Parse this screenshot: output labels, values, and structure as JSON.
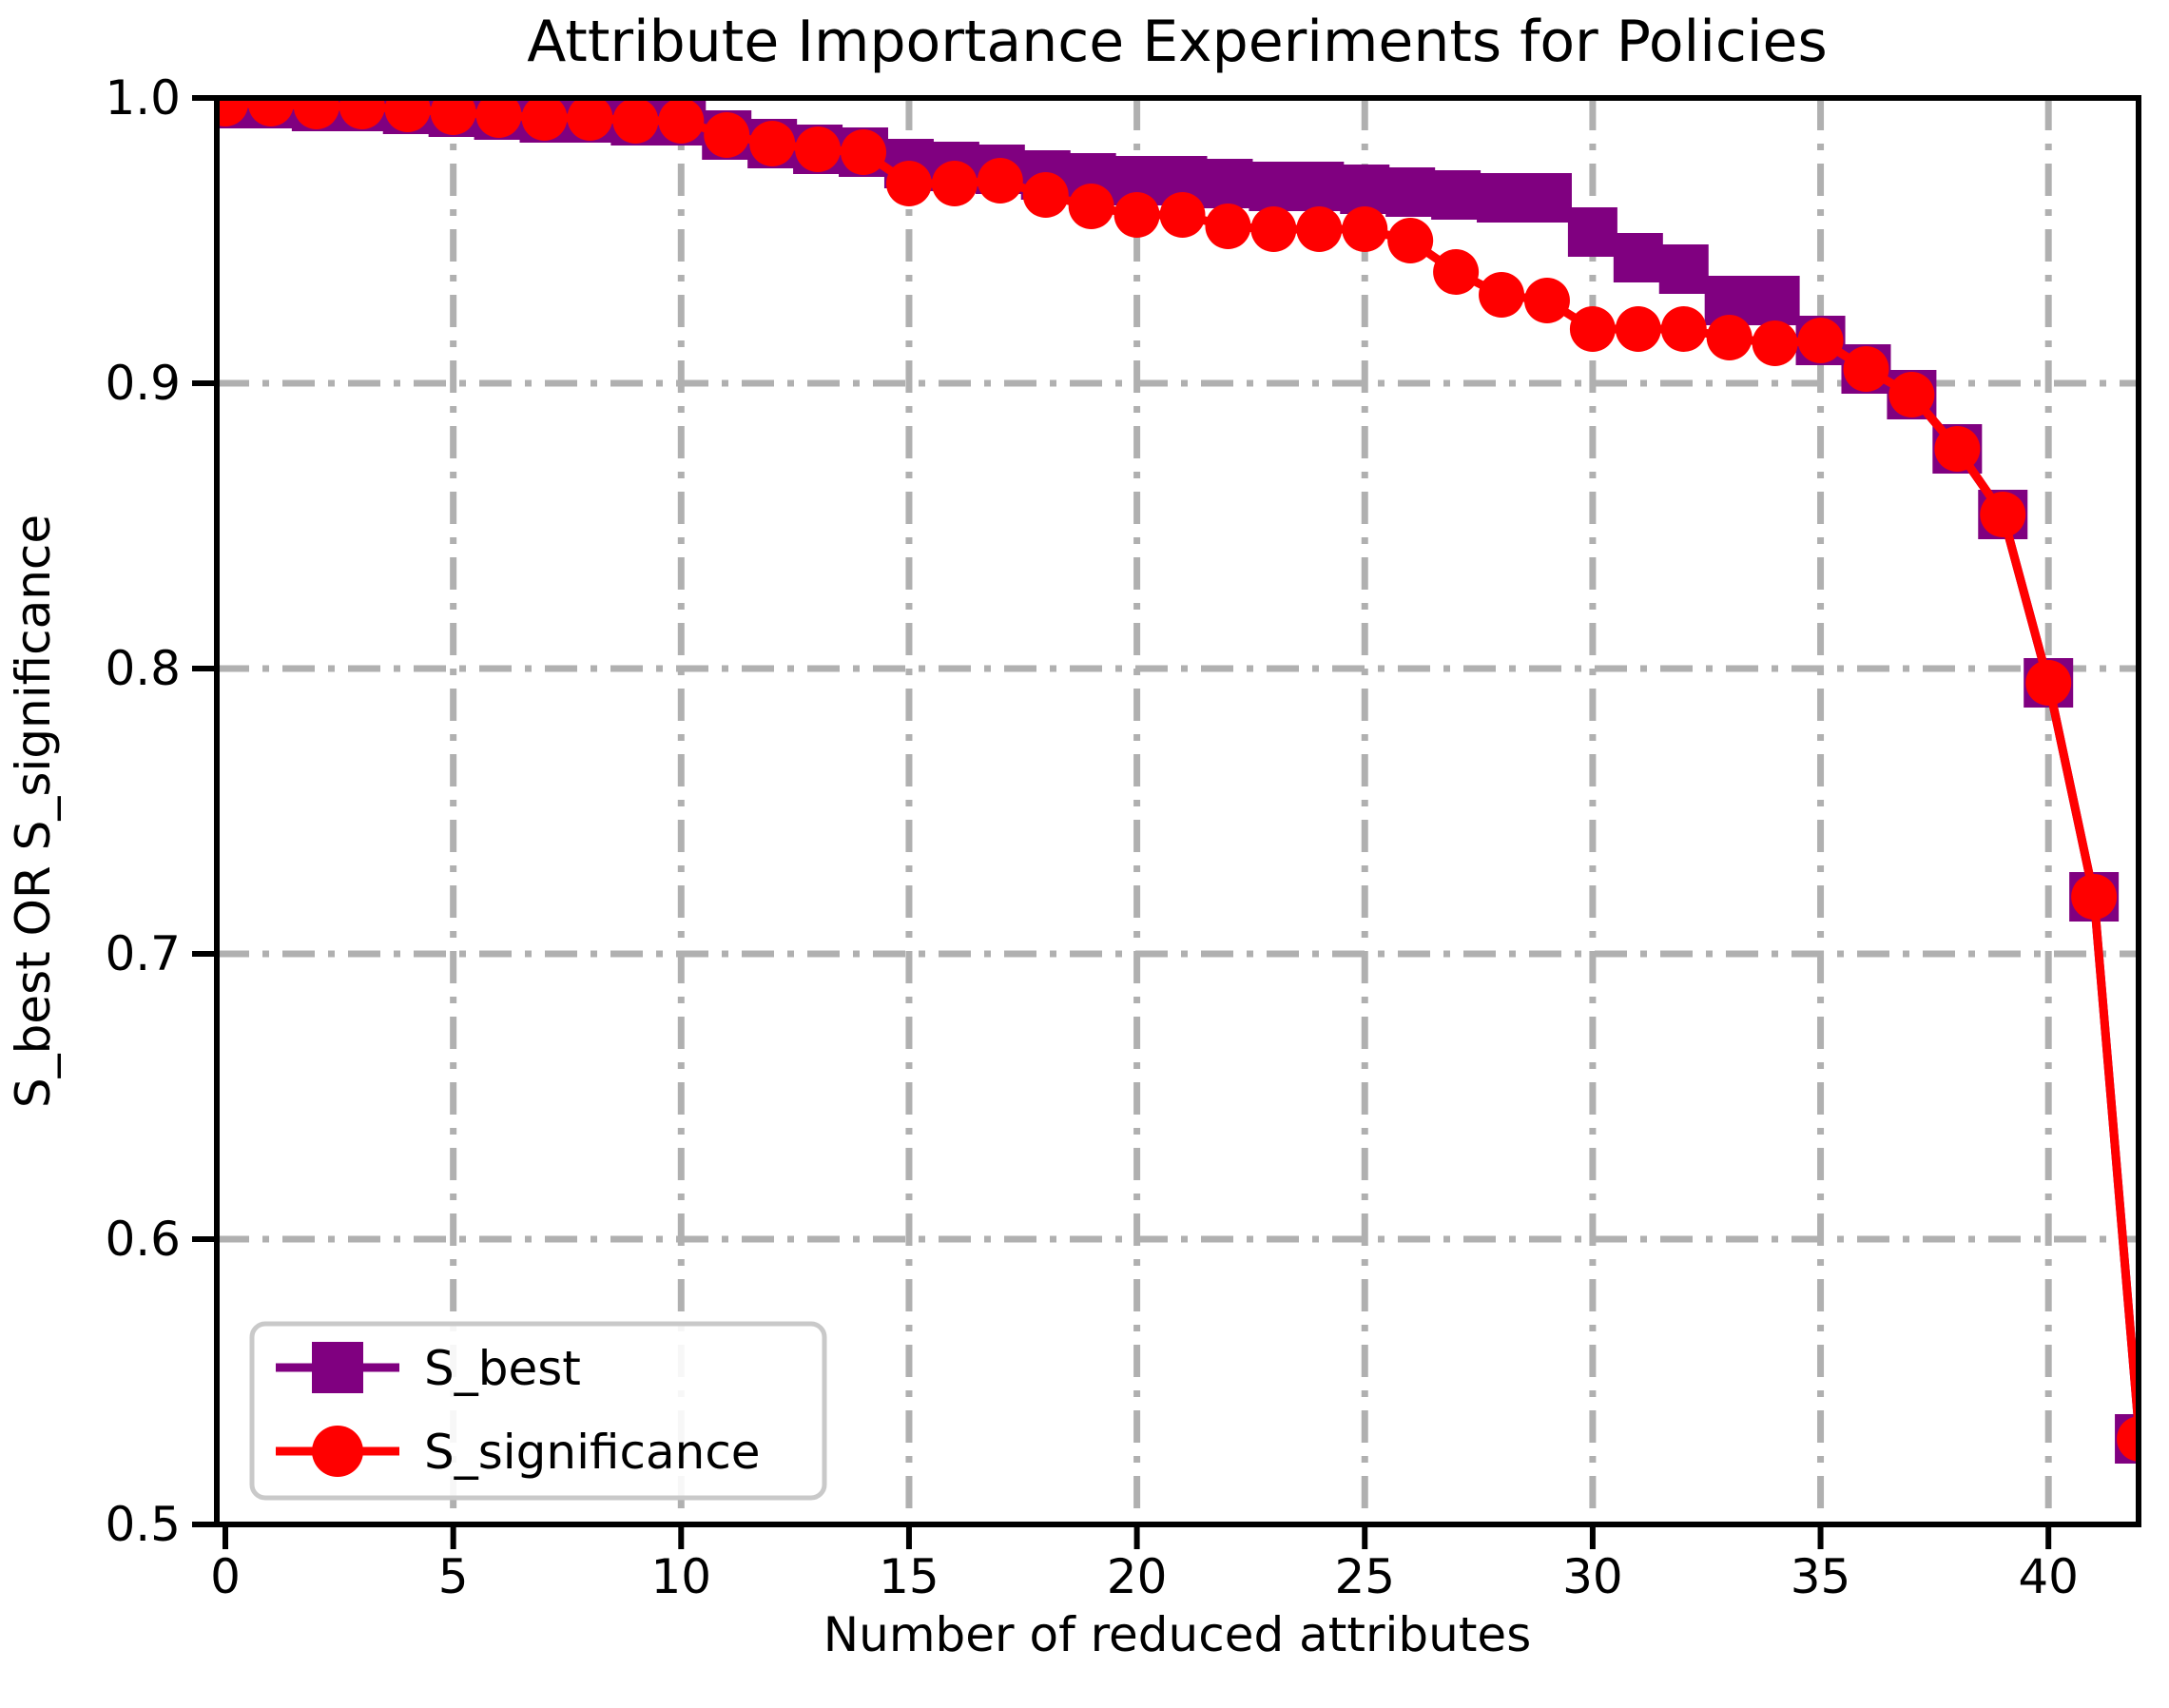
{
  "chart_data": {
    "type": "line",
    "title": "Attribute Importance Experiments for Policies",
    "xlabel": "Number of reduced attributes",
    "ylabel": "S_best OR S_significance",
    "x_tick_labels": [
      "0",
      "5",
      "10",
      "15",
      "20",
      "25",
      "30",
      "35",
      "40"
    ],
    "x_tick_values": [
      0,
      5,
      10,
      15,
      20,
      25,
      30,
      35,
      40
    ],
    "y_tick_labels": [
      "1.0",
      "0.9",
      "0.8",
      "0.7",
      "0.6",
      "0.5"
    ],
    "y_tick_values": [
      1.0,
      0.9,
      0.8,
      0.7,
      0.6,
      0.5
    ],
    "xlim": [
      -0.2,
      42.0
    ],
    "ylim": [
      0.5,
      1.0
    ],
    "grid": "dash-dot gridlines at x=5..40 step 5 and y=0.6..0.9 step 0.1",
    "legend_position": "lower-left",
    "x": [
      0,
      1,
      2,
      3,
      4,
      5,
      6,
      7,
      8,
      9,
      10,
      11,
      12,
      13,
      14,
      15,
      16,
      17,
      18,
      19,
      20,
      21,
      22,
      23,
      24,
      25,
      26,
      27,
      28,
      29,
      30,
      31,
      32,
      33,
      34,
      35,
      36,
      37,
      38,
      39,
      40,
      41,
      42
    ],
    "series": [
      {
        "name": "S_best",
        "color": "#800080",
        "marker": "square",
        "values": [
          0.998,
          0.998,
          0.997,
          0.997,
          0.996,
          0.995,
          0.994,
          0.993,
          0.993,
          0.992,
          0.992,
          0.987,
          0.984,
          0.982,
          0.981,
          0.977,
          0.976,
          0.975,
          0.973,
          0.972,
          0.971,
          0.971,
          0.97,
          0.969,
          0.969,
          0.968,
          0.967,
          0.966,
          0.965,
          0.965,
          0.953,
          0.944,
          0.94,
          0.929,
          0.929,
          0.915,
          0.905,
          0.896,
          0.877,
          0.854,
          0.795,
          0.72,
          0.53
        ]
      },
      {
        "name": "S_significance",
        "color": "#ff0000",
        "marker": "circle",
        "values": [
          0.998,
          0.998,
          0.997,
          0.997,
          0.996,
          0.995,
          0.994,
          0.993,
          0.993,
          0.992,
          0.992,
          0.987,
          0.984,
          0.982,
          0.981,
          0.97,
          0.97,
          0.971,
          0.966,
          0.962,
          0.959,
          0.959,
          0.955,
          0.954,
          0.954,
          0.954,
          0.95,
          0.939,
          0.931,
          0.929,
          0.919,
          0.919,
          0.919,
          0.916,
          0.914,
          0.915,
          0.905,
          0.896,
          0.877,
          0.854,
          0.795,
          0.72,
          0.53
        ]
      }
    ]
  },
  "colors": {
    "background": "#ffffff",
    "spine": "#000000",
    "grid": "#b0b0b0",
    "tick": "#000000",
    "legend_border": "#c9c9c9",
    "legend_background": "#ffffff"
  }
}
